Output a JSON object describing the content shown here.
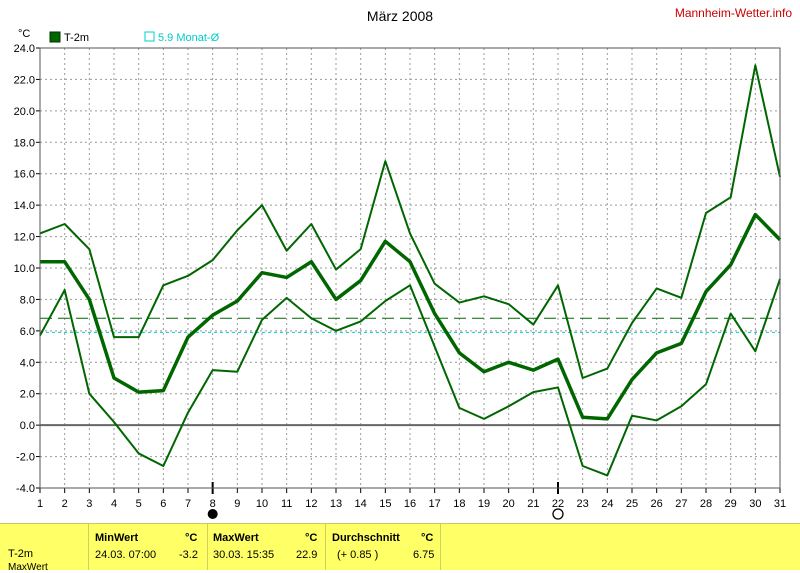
{
  "header": {
    "title": "März 2008",
    "site": "Mannheim-Wetter.info",
    "unit": "°C"
  },
  "legend": [
    {
      "label": "T-2m",
      "color": "#006600",
      "marker": "filled-square"
    },
    {
      "label": "5.9 Monat-Ø",
      "color": "#00cccc",
      "marker": "open-square"
    }
  ],
  "colors": {
    "series": "#006600",
    "mean_line": "#00cccc",
    "reference_dashed": "#006600",
    "grid": "#999999",
    "stats_background": "#ffff66"
  },
  "chart_data": {
    "type": "line",
    "title": "März 2008",
    "xlabel": "",
    "ylabel": "°C",
    "x": [
      1,
      2,
      3,
      4,
      5,
      6,
      7,
      8,
      9,
      10,
      11,
      12,
      13,
      14,
      15,
      16,
      17,
      18,
      19,
      20,
      21,
      22,
      23,
      24,
      25,
      26,
      27,
      28,
      29,
      30,
      31
    ],
    "xlim": [
      1,
      31
    ],
    "ylim": [
      -4,
      24
    ],
    "yticks": [
      "-4.0",
      "-2.0",
      "0.0",
      "2.0",
      "4.0",
      "6.0",
      "8.0",
      "10.0",
      "12.0",
      "14.0",
      "16.0",
      "18.0",
      "20.0",
      "22.0",
      "24.0"
    ],
    "series": [
      {
        "name": "max",
        "values": [
          12.2,
          12.8,
          11.2,
          5.6,
          5.6,
          8.9,
          9.5,
          10.5,
          12.4,
          14.0,
          11.1,
          12.8,
          9.9,
          11.2,
          16.8,
          12.2,
          9.0,
          7.8,
          8.2,
          7.7,
          6.4,
          8.9,
          3.0,
          3.6,
          6.5,
          8.7,
          8.1,
          13.5,
          14.5,
          22.9,
          15.8
        ],
        "width": 2
      },
      {
        "name": "T-2m",
        "values": [
          10.4,
          10.4,
          8.0,
          3.0,
          2.1,
          2.2,
          5.6,
          7.0,
          7.9,
          9.7,
          9.4,
          10.4,
          8.0,
          9.2,
          11.7,
          10.4,
          7.1,
          4.6,
          3.4,
          4.0,
          3.5,
          4.2,
          0.5,
          0.4,
          2.9,
          4.6,
          5.2,
          8.5,
          10.2,
          13.4,
          11.8
        ],
        "width": 3.5
      },
      {
        "name": "min",
        "values": [
          5.7,
          8.6,
          2.0,
          0.2,
          -1.8,
          -2.6,
          0.8,
          3.5,
          3.4,
          6.7,
          8.1,
          6.8,
          6.0,
          6.6,
          7.9,
          8.9,
          5.0,
          1.1,
          0.4,
          1.2,
          2.1,
          2.4,
          -2.6,
          -3.2,
          0.6,
          0.3,
          1.2,
          2.6,
          7.1,
          4.7,
          9.3
        ],
        "width": 2
      }
    ],
    "reference_lines": [
      {
        "name": "5.9 Monat-Ø",
        "value": 5.9,
        "style": "dotted",
        "color": "#00cccc"
      },
      {
        "name": "reference",
        "value": 6.8,
        "style": "dashed",
        "color": "#006600"
      }
    ],
    "zero_line": true,
    "grid": true,
    "markers": [
      {
        "day": 8,
        "symbol": "new-moon"
      },
      {
        "day": 22,
        "symbol": "full-moon"
      }
    ]
  },
  "stats": {
    "row_label": "T-2m",
    "row_label_next": "MaxWert",
    "min": {
      "header": "MinWert",
      "unit": "°C",
      "datetime": "24.03.  07:00",
      "value": "-3.2"
    },
    "max": {
      "header": "MaxWert",
      "unit": "°C",
      "datetime": "30.03.  15:35",
      "value": "22.9"
    },
    "avg": {
      "header": "Durchschnitt",
      "unit": "°C",
      "delta": "(+ 0.85 )",
      "value": "6.75"
    }
  }
}
